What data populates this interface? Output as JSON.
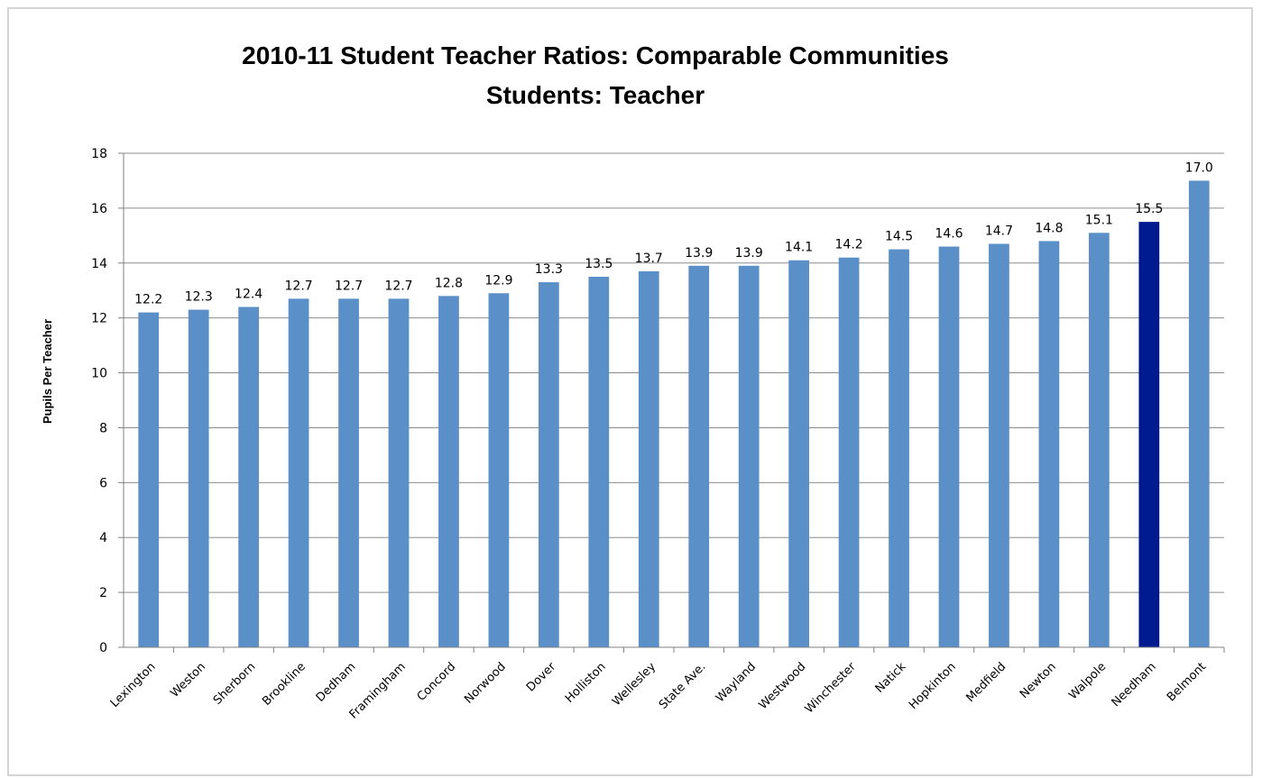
{
  "chart_data": {
    "type": "bar",
    "title": "2010-11 Student Teacher Ratios:  Comparable Communities",
    "subtitle": "Students:  Teacher",
    "xlabel": "",
    "ylabel": "Pupils Per Teacher",
    "ylim": [
      0,
      18
    ],
    "yticks": [
      0,
      2,
      4,
      6,
      8,
      10,
      12,
      14,
      16,
      18
    ],
    "grid": true,
    "categories": [
      "Lexington",
      "Weston",
      "Sherborn",
      "Brookline",
      "Dedham",
      "Framingham",
      "Concord",
      "Norwood",
      "Dover",
      "Holliston",
      "Wellesley",
      "State Ave.",
      "Wayland",
      "Westwood",
      "Winchester",
      "Natick",
      "Hopkinton",
      "Medfield",
      "Newton",
      "Walpole",
      "Needham",
      "Belmont"
    ],
    "values": [
      12.2,
      12.3,
      12.4,
      12.7,
      12.7,
      12.7,
      12.8,
      12.9,
      13.3,
      13.5,
      13.7,
      13.9,
      13.9,
      14.1,
      14.2,
      14.5,
      14.6,
      14.7,
      14.8,
      15.1,
      15.5,
      17.0
    ],
    "data_labels": [
      "12.2",
      "12.3",
      "12.4",
      "12.7",
      "12.7",
      "12.7",
      "12.8",
      "12.9",
      "13.3",
      "13.5",
      "13.7",
      "13.9",
      "13.9",
      "14.1",
      "14.2",
      "14.5",
      "14.6",
      "14.7",
      "14.8",
      "15.1",
      "15.5",
      "17.0"
    ],
    "highlight_category": "Needham",
    "colors": {
      "bar": "#5b8fc7",
      "highlight": "#001a8f",
      "grid": "#8c8c8c",
      "axis": "#808080"
    }
  }
}
